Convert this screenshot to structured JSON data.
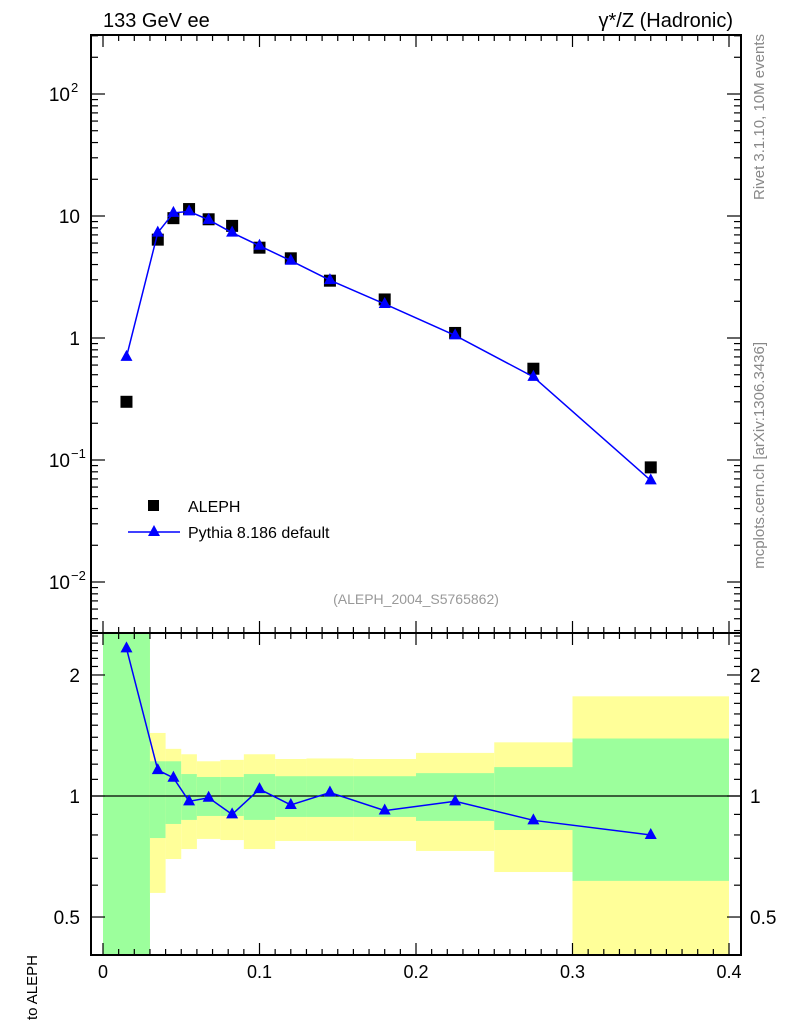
{
  "chart_data": [
    {
      "type": "scatter",
      "panel": "main",
      "title_left": "133 GeV ee",
      "title_right": "γ*/Z (Hadronic)",
      "side_label_top": "Rivet 3.1.10,  10M events",
      "side_label_bottom": "mcplots.cern.ch [arXiv:1306.3436]",
      "analysis_label": "(ALEPH_2004_S5765862)",
      "yscale": "log",
      "ylim": [
        0.0039,
        300
      ],
      "xlim": [
        -0.008,
        0.407
      ],
      "ytick_labels": [
        {
          "value": 100,
          "base": "10",
          "exp": "2"
        },
        {
          "value": 10,
          "base": "10",
          "exp": ""
        },
        {
          "value": 1,
          "base": "1",
          "exp": ""
        },
        {
          "value": 0.1,
          "base": "10",
          "exp": "−1"
        },
        {
          "value": 0.01,
          "base": "10",
          "exp": "−2"
        }
      ],
      "legend_position": "bottom-left",
      "series": [
        {
          "name": "ALEPH",
          "marker": "square",
          "color": "#000000",
          "x": [
            0.015,
            0.035,
            0.045,
            0.055,
            0.0675,
            0.0825,
            0.1,
            0.12,
            0.145,
            0.18,
            0.225,
            0.275,
            0.35
          ],
          "y": [
            0.3,
            6.4,
            9.6,
            11.4,
            9.4,
            8.3,
            5.5,
            4.5,
            2.95,
            2.07,
            1.1,
            0.56,
            0.087
          ]
        },
        {
          "name": "Pythia 8.186 default",
          "marker": "triangle",
          "line": true,
          "color": "#0000ff",
          "x": [
            0.015,
            0.035,
            0.045,
            0.055,
            0.0675,
            0.0825,
            0.1,
            0.12,
            0.145,
            0.18,
            0.225,
            0.275,
            0.35
          ],
          "y": [
            0.7,
            7.3,
            10.6,
            10.9,
            9.3,
            7.3,
            5.7,
            4.3,
            2.98,
            1.9,
            1.05,
            0.48,
            0.068
          ]
        }
      ]
    },
    {
      "type": "line",
      "panel": "ratio",
      "ylabel": "Ratio to ALEPH",
      "yscale": "log",
      "ylim": [
        0.4,
        2.56
      ],
      "xlim": [
        -0.008,
        0.407
      ],
      "xtick_labels": [
        "0",
        "0.1",
        "0.2",
        "0.3",
        "0.4"
      ],
      "xtick_values": [
        0,
        0.1,
        0.2,
        0.3,
        0.4
      ],
      "ytick_labels": [
        "2",
        "1",
        "0.5"
      ],
      "ytick_values": [
        2,
        1,
        0.5
      ],
      "reference_line": 1,
      "band_colors": {
        "stat": "#9cff9c",
        "total": "#ffff99"
      },
      "bins": [
        {
          "lo": 0.0,
          "hi": 0.03,
          "stat": [
            0.3,
            3.0
          ],
          "total": [
            0.3,
            3.0
          ]
        },
        {
          "lo": 0.03,
          "hi": 0.04,
          "stat": [
            0.786,
            1.22
          ],
          "total": [
            0.574,
            1.435
          ]
        },
        {
          "lo": 0.04,
          "hi": 0.05,
          "stat": [
            0.852,
            1.22
          ],
          "total": [
            0.697,
            1.31
          ]
        },
        {
          "lo": 0.05,
          "hi": 0.06,
          "stat": [
            0.872,
            1.134
          ],
          "total": [
            0.738,
            1.27
          ]
        },
        {
          "lo": 0.06,
          "hi": 0.075,
          "stat": [
            0.892,
            1.115
          ],
          "total": [
            0.782,
            1.22
          ]
        },
        {
          "lo": 0.075,
          "hi": 0.09,
          "stat": [
            0.892,
            1.115
          ],
          "total": [
            0.777,
            1.23
          ]
        },
        {
          "lo": 0.09,
          "hi": 0.11,
          "stat": [
            0.872,
            1.134
          ],
          "total": [
            0.738,
            1.27
          ]
        },
        {
          "lo": 0.11,
          "hi": 0.13,
          "stat": [
            0.887,
            1.12
          ],
          "total": [
            0.773,
            1.236
          ]
        },
        {
          "lo": 0.13,
          "hi": 0.16,
          "stat": [
            0.887,
            1.12
          ],
          "total": [
            0.773,
            1.24
          ]
        },
        {
          "lo": 0.16,
          "hi": 0.2,
          "stat": [
            0.887,
            1.12
          ],
          "total": [
            0.773,
            1.236
          ]
        },
        {
          "lo": 0.2,
          "hi": 0.25,
          "stat": [
            0.867,
            1.14
          ],
          "total": [
            0.73,
            1.28
          ]
        },
        {
          "lo": 0.25,
          "hi": 0.3,
          "stat": [
            0.823,
            1.18
          ],
          "total": [
            0.647,
            1.36
          ]
        },
        {
          "lo": 0.3,
          "hi": 0.4,
          "stat": [
            0.615,
            1.39
          ],
          "total": [
            0.3,
            1.77
          ]
        }
      ],
      "series": [
        {
          "name": "Pythia 8.186 default / ALEPH",
          "color": "#0000ff",
          "x": [
            0.015,
            0.035,
            0.045,
            0.055,
            0.0675,
            0.0825,
            0.1,
            0.12,
            0.145,
            0.18,
            0.225,
            0.275,
            0.35
          ],
          "y": [
            2.33,
            1.16,
            1.11,
            0.97,
            0.99,
            0.9,
            1.04,
            0.95,
            1.02,
            0.92,
            0.97,
            0.87,
            0.8
          ]
        }
      ]
    }
  ]
}
